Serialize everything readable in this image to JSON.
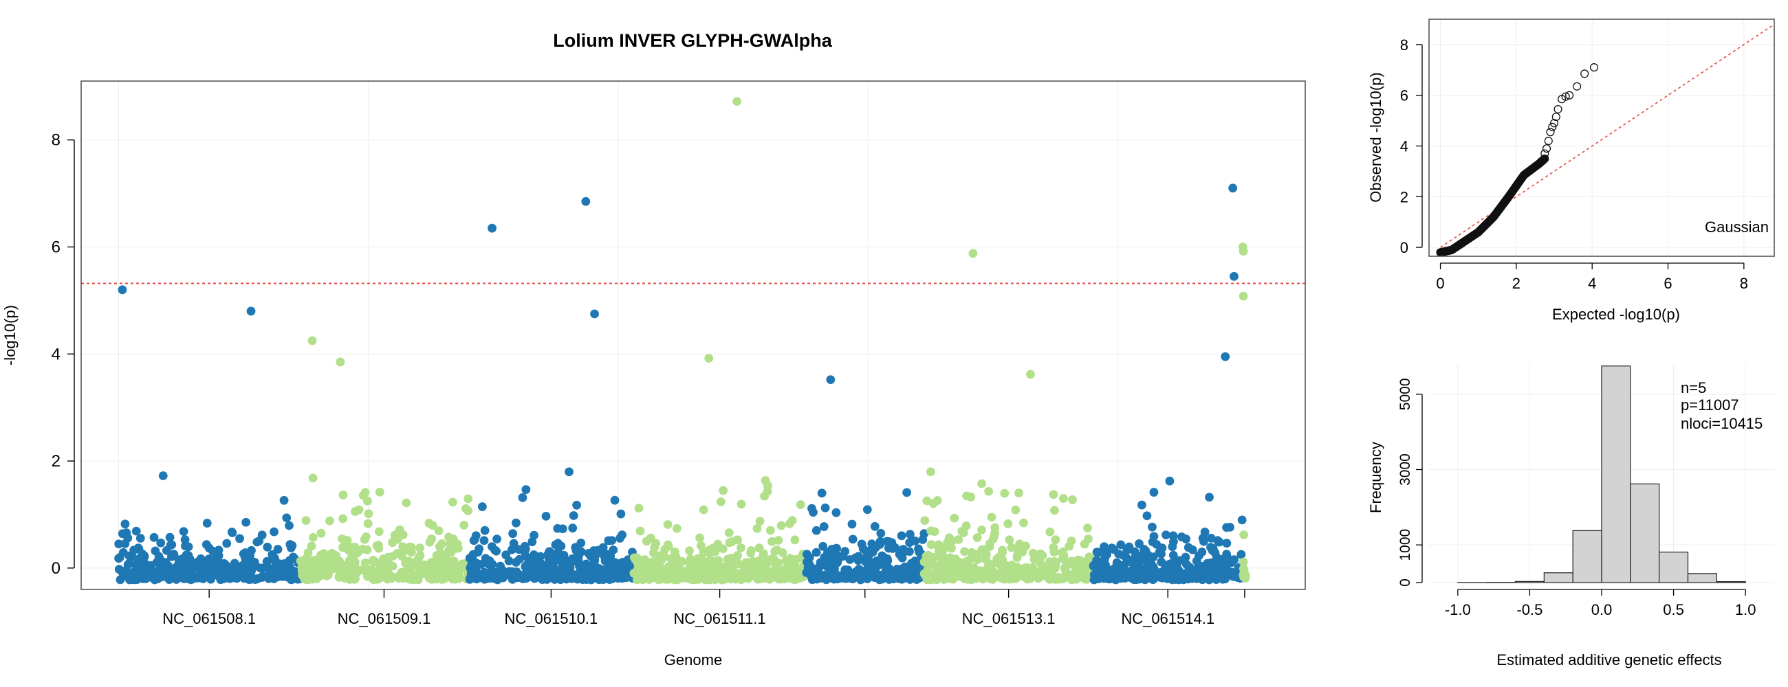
{
  "chart_data": [
    {
      "type": "scatter",
      "title": "Lolium INVER GLYPH-GWAlpha",
      "xlabel": "Genome",
      "ylabel": "-log10(p)",
      "ylim": [
        -0.4,
        9.1
      ],
      "yticks": [
        0,
        2,
        4,
        6,
        8
      ],
      "grid": true,
      "threshold": 5.32,
      "colors": {
        "dark": "#1f78b4",
        "light": "#b2df8a",
        "threshold": "#e8473f"
      },
      "chromosomes": [
        {
          "name": "NC_061508.1",
          "start": 0,
          "end": 290,
          "color": "dark",
          "seed": 11
        },
        {
          "name": "NC_061509.1",
          "start": 290,
          "end": 560,
          "color": "light",
          "seed": 23
        },
        {
          "name": "NC_061510.1",
          "start": 560,
          "end": 825,
          "color": "dark",
          "seed": 37
        },
        {
          "name": "NC_061511.1",
          "start": 825,
          "end": 1100,
          "color": "light",
          "seed": 41
        },
        {
          "name": "",
          "start": 1100,
          "end": 1290,
          "color": "dark",
          "seed": 53
        },
        {
          "name": "NC_061513.1",
          "start": 1290,
          "end": 1560,
          "color": "light",
          "seed": 67
        },
        {
          "name": "NC_061514.1",
          "start": 1560,
          "end": 1800,
          "color": "dark",
          "seed": 79
        },
        {
          "name": "",
          "start": 1800,
          "end": 1806,
          "color": "light",
          "seed": 83
        }
      ],
      "notable_points": [
        {
          "x": 6,
          "y": 5.2,
          "color": "dark"
        },
        {
          "x": 212,
          "y": 4.8,
          "color": "dark"
        },
        {
          "x": 310,
          "y": 4.25,
          "color": "light"
        },
        {
          "x": 598,
          "y": 6.35,
          "color": "dark"
        },
        {
          "x": 748,
          "y": 6.85,
          "color": "dark"
        },
        {
          "x": 762,
          "y": 4.75,
          "color": "dark"
        },
        {
          "x": 990,
          "y": 8.72,
          "color": "light"
        },
        {
          "x": 1368,
          "y": 5.88,
          "color": "light"
        },
        {
          "x": 1784,
          "y": 7.1,
          "color": "dark"
        },
        {
          "x": 1786,
          "y": 5.45,
          "color": "dark"
        },
        {
          "x": 1772,
          "y": 3.95,
          "color": "dark"
        },
        {
          "x": 1800,
          "y": 6.0,
          "color": "light"
        },
        {
          "x": 1801,
          "y": 5.92,
          "color": "light"
        },
        {
          "x": 1801,
          "y": 5.08,
          "color": "light"
        },
        {
          "x": 355,
          "y": 3.85,
          "color": "light"
        },
        {
          "x": 945,
          "y": 3.92,
          "color": "light"
        },
        {
          "x": 1140,
          "y": 3.52,
          "color": "dark"
        },
        {
          "x": 1460,
          "y": 3.62,
          "color": "light"
        }
      ]
    },
    {
      "type": "scatter",
      "title": "",
      "xlabel": "Expected -log10(p)",
      "ylabel": "Observed -log10(p)",
      "xlim": [
        -0.3,
        8.8
      ],
      "ylim": [
        -0.35,
        9.0
      ],
      "xticks": [
        0,
        2,
        4,
        6,
        8
      ],
      "yticks": [
        0,
        2,
        4,
        6,
        8
      ],
      "grid": true,
      "legend": "Gaussian",
      "diagonal": [
        [
          0,
          0
        ],
        [
          8.8,
          8.8
        ]
      ],
      "main_curve": [
        [
          0.0,
          -0.2
        ],
        [
          0.3,
          -0.1
        ],
        [
          0.6,
          0.2
        ],
        [
          1.0,
          0.6
        ],
        [
          1.4,
          1.2
        ],
        [
          1.8,
          2.0
        ],
        [
          2.2,
          2.85
        ],
        [
          2.6,
          3.3
        ],
        [
          2.75,
          3.5
        ]
      ],
      "tail_points": [
        {
          "x": 2.75,
          "y": 3.7
        },
        {
          "x": 2.8,
          "y": 3.9
        },
        {
          "x": 2.85,
          "y": 4.2
        },
        {
          "x": 2.9,
          "y": 4.55
        },
        {
          "x": 2.95,
          "y": 4.75
        },
        {
          "x": 3.0,
          "y": 4.9
        },
        {
          "x": 3.05,
          "y": 5.15
        },
        {
          "x": 3.1,
          "y": 5.45
        },
        {
          "x": 3.2,
          "y": 5.85
        },
        {
          "x": 3.3,
          "y": 5.95
        },
        {
          "x": 3.4,
          "y": 6.0
        },
        {
          "x": 3.6,
          "y": 6.35
        },
        {
          "x": 3.8,
          "y": 6.85
        },
        {
          "x": 4.05,
          "y": 7.1
        }
      ]
    },
    {
      "type": "bar",
      "title": "",
      "xlabel": "Estimated additive genetic effects",
      "ylabel": "Frequency",
      "xlim": [
        -1.2,
        1.2
      ],
      "ylim": [
        0,
        5800
      ],
      "xticks": [
        "-1.0",
        "-0.5",
        "0.0",
        "0.5",
        "1.0"
      ],
      "yticks": [
        "0",
        "1000",
        "3000",
        "5000"
      ],
      "ytick_values": [
        0,
        1000,
        3000,
        5000
      ],
      "grid": true,
      "bins": [
        {
          "from": -1.0,
          "to": -0.8,
          "value": 2
        },
        {
          "from": -0.8,
          "to": -0.6,
          "value": 5
        },
        {
          "from": -0.6,
          "to": -0.4,
          "value": 30
        },
        {
          "from": -0.4,
          "to": -0.2,
          "value": 260
        },
        {
          "from": -0.2,
          "to": 0.0,
          "value": 1380
        },
        {
          "from": 0.0,
          "to": 0.2,
          "value": 5750
        },
        {
          "from": 0.2,
          "to": 0.4,
          "value": 2620
        },
        {
          "from": 0.4,
          "to": 0.6,
          "value": 810
        },
        {
          "from": 0.6,
          "to": 0.8,
          "value": 240
        },
        {
          "from": 0.8,
          "to": 1.0,
          "value": 25
        }
      ],
      "annotation": [
        "n=5",
        "p=11007",
        "nloci=10415"
      ]
    }
  ]
}
